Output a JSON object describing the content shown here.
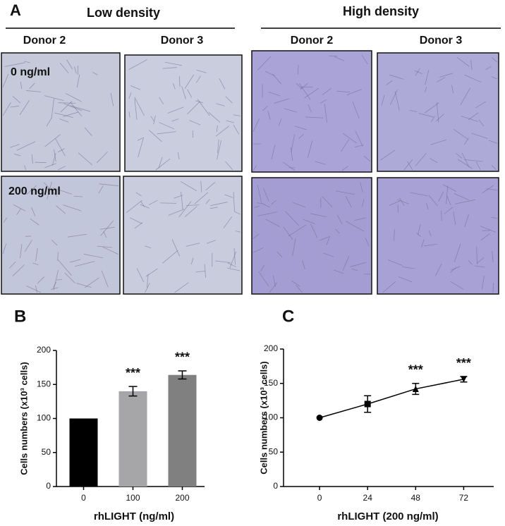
{
  "panel_a": {
    "label": "A",
    "groups": [
      {
        "title": "Low density",
        "donors": [
          "Donor 2",
          "Donor 3"
        ]
      },
      {
        "title": "High density",
        "donors": [
          "Donor 2",
          "Donor 3"
        ]
      }
    ],
    "rows": [
      "0 ng/ml",
      "200 ng/ml"
    ]
  },
  "chart_data": [
    {
      "panel": "B",
      "type": "bar",
      "xlabel": "rhLIGHT (ng/ml)",
      "ylabel": "Cells numbers (x10³ cells)",
      "categories": [
        "0",
        "100",
        "200"
      ],
      "values": [
        100,
        140,
        164
      ],
      "errors": [
        0,
        7,
        6
      ],
      "colors": [
        "#000000",
        "#a6a6a8",
        "#808080"
      ],
      "significance": [
        null,
        "***",
        "***"
      ],
      "ylim": [
        0,
        200
      ],
      "yticks": [
        0,
        50,
        100,
        150,
        200
      ]
    },
    {
      "panel": "C",
      "type": "line",
      "xlabel": "rhLIGHT (200 ng/ml)",
      "ylabel": "Cells numbers (x10³ cells)",
      "x": [
        0,
        24,
        48,
        72
      ],
      "values": [
        100,
        120,
        142,
        156
      ],
      "errors": [
        0,
        12,
        8,
        4
      ],
      "markers": [
        "circle",
        "square",
        "triangle-up",
        "triangle-down"
      ],
      "color": "#000000",
      "significance": [
        null,
        null,
        "***",
        "***"
      ],
      "xlim": [
        -18,
        87
      ],
      "xticks": [
        0,
        24,
        48,
        72
      ],
      "ylim": [
        0,
        200
      ],
      "yticks": [
        0,
        50,
        100,
        150,
        200
      ]
    }
  ]
}
